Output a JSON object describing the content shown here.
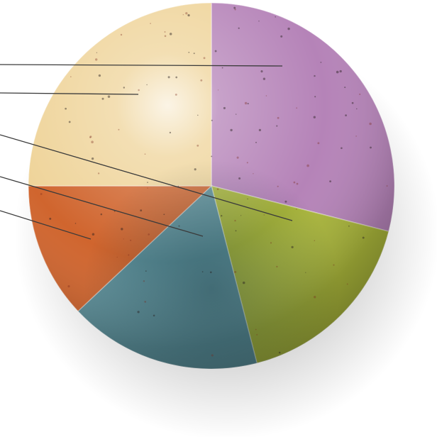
{
  "chart_data": {
    "type": "pie",
    "slices": [
      {
        "value": 29,
        "color": "#b583b8"
      },
      {
        "value": 17,
        "color": "#a9b53a"
      },
      {
        "value": 17,
        "color": "#5c8e98"
      },
      {
        "value": 12,
        "color": "#d0652e"
      },
      {
        "value": 25,
        "color": "#efd49a"
      }
    ],
    "leader_lines": 5,
    "legend": "none",
    "style": "airbrushed 3D sphere"
  }
}
